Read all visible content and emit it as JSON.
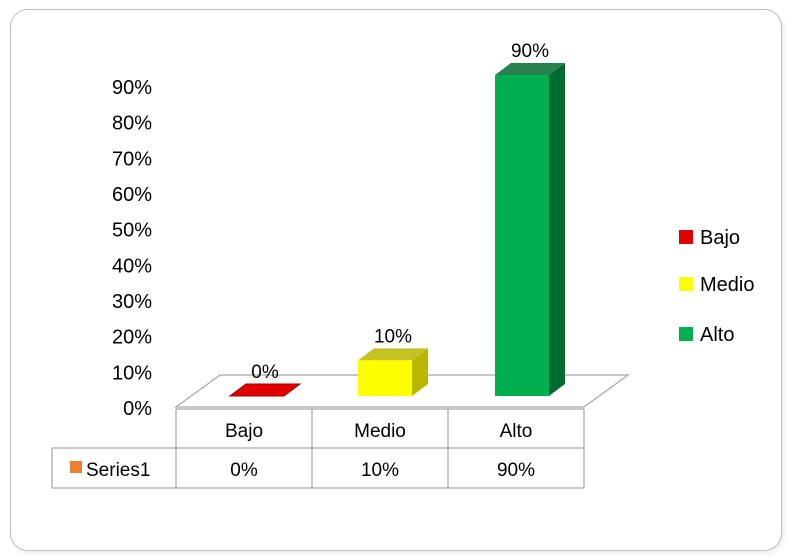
{
  "chart_data": {
    "type": "bar",
    "categories": [
      "Bajo",
      "Medio",
      "Alto"
    ],
    "series": [
      {
        "name": "Series1",
        "values": [
          0,
          10,
          90
        ],
        "color": "#ed7d31"
      }
    ],
    "value_labels": [
      "0%",
      "10%",
      "90%"
    ],
    "point_colors": [
      "#e00000",
      "#ffff00",
      "#00b050"
    ],
    "point_side_colors": [
      "#a00000",
      "#b8b800",
      "#006b30"
    ],
    "ylim": [
      0,
      90
    ],
    "y_ticks": [
      "0%",
      "10%",
      "20%",
      "30%",
      "40%",
      "50%",
      "60%",
      "70%",
      "80%",
      "90%"
    ],
    "legend": {
      "position": "right",
      "entries": [
        {
          "label": "Bajo",
          "color": "#e00000"
        },
        {
          "label": "Medio",
          "color": "#ffff00"
        },
        {
          "label": "Alto",
          "color": "#00b050"
        }
      ]
    },
    "data_table": {
      "header": [
        "Bajo",
        "Medio",
        "Alto"
      ],
      "rows": [
        {
          "name": "Series1",
          "cells": [
            "0%",
            "10%",
            "90%"
          ]
        }
      ]
    },
    "grid": false,
    "style": "3d-column"
  }
}
